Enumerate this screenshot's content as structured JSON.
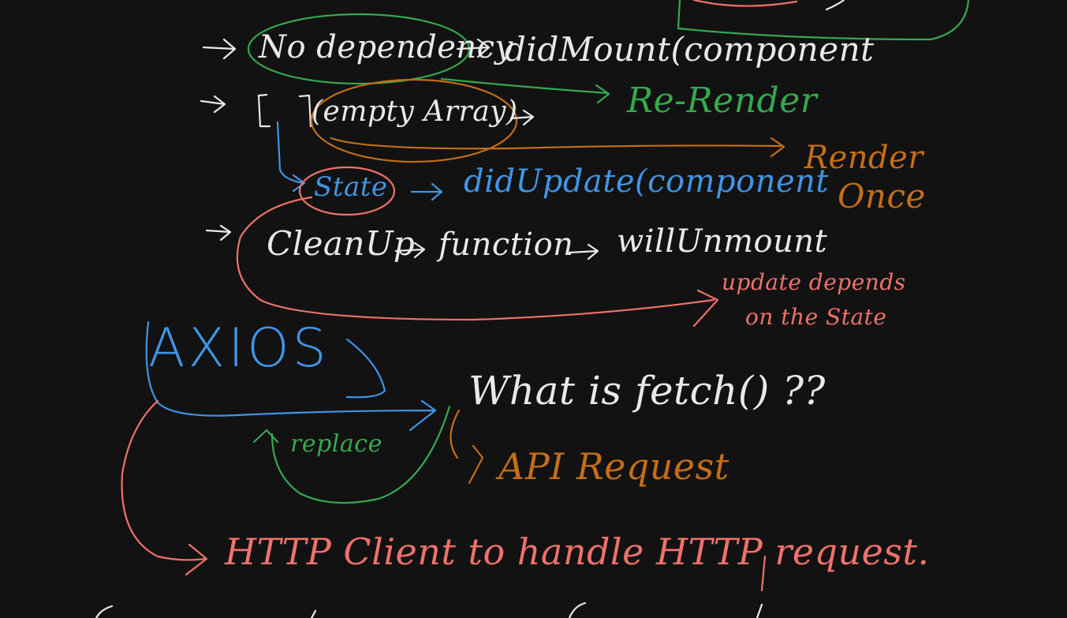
{
  "colors": {
    "background": "#121212",
    "white_ink": "#e9e9e9",
    "green_ink": "#35a94f",
    "orange_ink": "#c56e17",
    "blue_ink": "#3f95e6",
    "red_ink": "#f0716b"
  },
  "notes": {
    "no_dependency": "No dependency",
    "did_mount": "didMount(component",
    "re_render": "Re-Render",
    "empty_array_bracket": "[ ]",
    "empty_array": "(empty Array)",
    "render_once_line1": "Render",
    "render_once_line2": "Once",
    "state": "State",
    "did_update": "didUpdate(component",
    "cleanup": "CleanUp",
    "function": "function",
    "will_unmount": "willUnmount",
    "update_depends_line1": "update depends",
    "update_depends_line2": "on the State",
    "axios": "AXIOS",
    "what_is_fetch": "What is fetch() ??",
    "replace": "replace",
    "api_request": "API Request",
    "http_client": "HTTP Client to handle HTTP request."
  }
}
